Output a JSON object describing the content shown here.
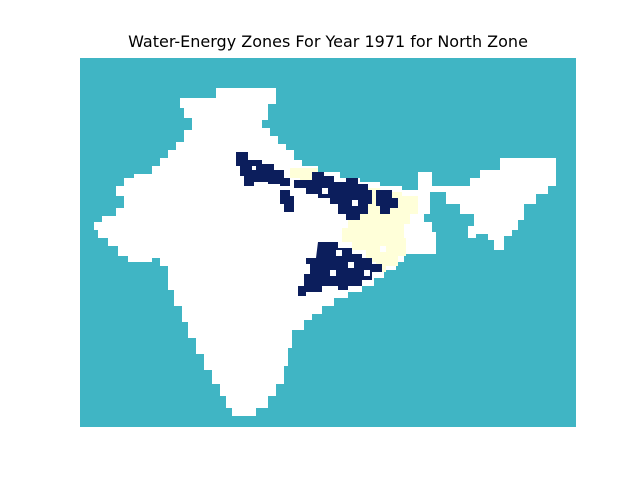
{
  "figure": {
    "title": "Water-Energy Zones For Year 1971 for North Zone"
  },
  "map": {
    "region": "India",
    "zone": "North Zone",
    "year": 1971,
    "axes_visible": false,
    "legend": "none",
    "colors": {
      "background": "#40b5c4",
      "land": "#ffffff",
      "high_zone": "#0c1e5c",
      "moderate_zone": "#ffffd9"
    }
  }
}
